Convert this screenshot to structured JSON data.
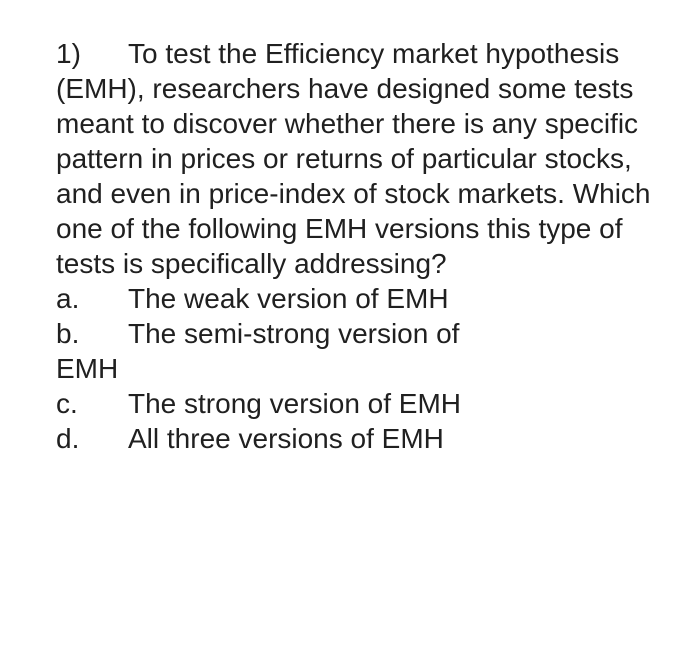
{
  "question": {
    "number": "1)",
    "text": "To test the Efficiency market hypothesis (EMH), researchers have designed some tests meant to discover whether there is any specific pattern in prices or returns of particular stocks, and even in price-index of stock markets. Which one of the following EMH versions this type of tests is specifically addressing?"
  },
  "options": {
    "a": {
      "letter": "a.",
      "text": "The weak version of EMH"
    },
    "b": {
      "letter": "b.",
      "text": "The semi-strong version of",
      "continuation": "EMH"
    },
    "c": {
      "letter": "c.",
      "text": "The strong version of EMH"
    },
    "d": {
      "letter": "d.",
      "text": "All three versions of EMH"
    }
  },
  "styling": {
    "background_color": "#ffffff",
    "text_color": "#202020",
    "font_size": 28,
    "font_family": "Segoe UI, sans-serif",
    "line_height": 1.25
  }
}
